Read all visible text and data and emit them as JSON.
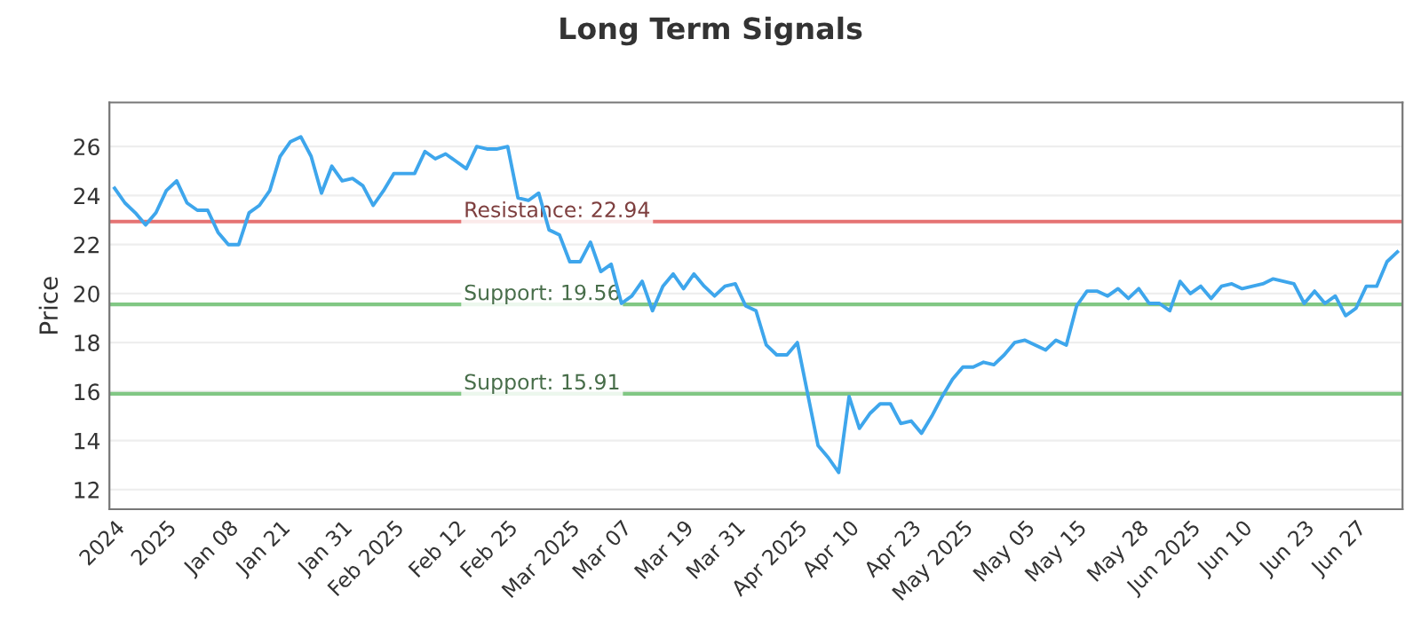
{
  "chart_data": {
    "type": "line",
    "title": "Long Term Signals",
    "ylabel": "Price",
    "categories": [
      "2024",
      null,
      null,
      null,
      null,
      "2025",
      null,
      null,
      null,
      null,
      null,
      "Jan 08",
      null,
      null,
      null,
      null,
      "Jan 21",
      null,
      null,
      null,
      null,
      null,
      "Jan 31",
      null,
      null,
      null,
      null,
      "Feb 2025",
      null,
      null,
      null,
      null,
      null,
      "Feb 12",
      null,
      null,
      null,
      null,
      "Feb 25",
      null,
      null,
      null,
      null,
      null,
      "Mar 2025",
      null,
      null,
      null,
      null,
      "Mar 07",
      null,
      null,
      null,
      null,
      null,
      "Mar 19",
      null,
      null,
      null,
      null,
      "Mar 31",
      null,
      null,
      null,
      null,
      null,
      "Apr 2025",
      null,
      null,
      null,
      null,
      "Apr 10",
      null,
      null,
      null,
      null,
      null,
      "Apr 23",
      null,
      null,
      null,
      null,
      "May 2025",
      null,
      null,
      null,
      null,
      null,
      "May 05",
      null,
      null,
      null,
      null,
      "May 15",
      null,
      null,
      null,
      null,
      null,
      "May 28",
      null,
      null,
      null,
      null,
      "Jun 2025",
      null,
      null,
      null,
      null,
      "Jun 10",
      null,
      null,
      null,
      null,
      null,
      "Jun 23",
      null,
      null,
      null,
      null,
      "Jun 27",
      null,
      null,
      null,
      null
    ],
    "series": [
      {
        "color": "#3ea6ec",
        "values": [
          24.3,
          23.7,
          23.3,
          22.8,
          23.3,
          24.2,
          24.6,
          23.7,
          23.4,
          23.4,
          22.5,
          22.0,
          22.0,
          23.3,
          23.6,
          24.2,
          25.6,
          26.2,
          26.4,
          25.6,
          24.1,
          25.2,
          24.6,
          24.7,
          24.4,
          23.6,
          24.2,
          24.9,
          24.9,
          24.9,
          25.8,
          25.5,
          25.7,
          25.4,
          25.1,
          26.0,
          25.9,
          25.9,
          26.0,
          23.9,
          23.8,
          24.1,
          22.6,
          22.4,
          21.3,
          21.3,
          22.1,
          20.9,
          21.2,
          19.6,
          19.9,
          20.5,
          19.3,
          20.3,
          20.8,
          20.2,
          20.8,
          20.3,
          19.9,
          20.3,
          20.4,
          19.5,
          19.3,
          17.9,
          17.5,
          17.5,
          18.0,
          15.9,
          13.8,
          13.3,
          12.7,
          15.8,
          14.5,
          15.1,
          15.5,
          15.5,
          14.7,
          14.8,
          14.3,
          15.0,
          15.8,
          16.5,
          17.0,
          17.0,
          17.2,
          17.1,
          17.5,
          18.0,
          18.1,
          17.9,
          17.7,
          18.1,
          17.9,
          19.5,
          20.1,
          20.1,
          19.9,
          20.2,
          19.8,
          20.2,
          19.6,
          19.6,
          19.3,
          20.5,
          20.0,
          20.3,
          19.8,
          20.3,
          20.4,
          20.2,
          20.3,
          20.4,
          20.6,
          20.5,
          20.4,
          19.6,
          20.1,
          19.6,
          19.9,
          19.1,
          19.4,
          20.3,
          20.3,
          21.3,
          21.7
        ]
      }
    ],
    "ylim": [
      11.2,
      27.8
    ],
    "yticks": [
      12,
      14,
      16,
      18,
      20,
      22,
      24,
      26
    ],
    "grid": "y",
    "ref_lines": [
      {
        "axis": "y",
        "value": 22.94,
        "label": "Resistance: 22.94",
        "color": "#e57373"
      },
      {
        "axis": "y",
        "value": 19.56,
        "label": "Support: 19.56",
        "color": "#81c784"
      },
      {
        "axis": "y",
        "value": 15.91,
        "label": "Support: 15.91",
        "color": "#81c784"
      }
    ]
  }
}
